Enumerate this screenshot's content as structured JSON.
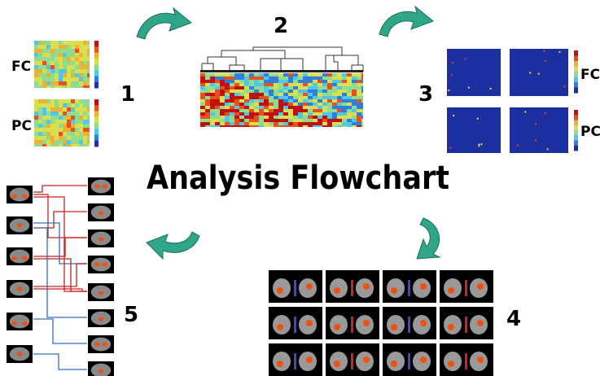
{
  "title": "Analysis Flowchart",
  "steps": [
    {
      "number": "1",
      "labels": [
        "FC",
        "PC"
      ]
    },
    {
      "number": "2"
    },
    {
      "number": "3",
      "labels": [
        "FC",
        "PC"
      ]
    },
    {
      "number": "4"
    },
    {
      "number": "5"
    }
  ]
}
